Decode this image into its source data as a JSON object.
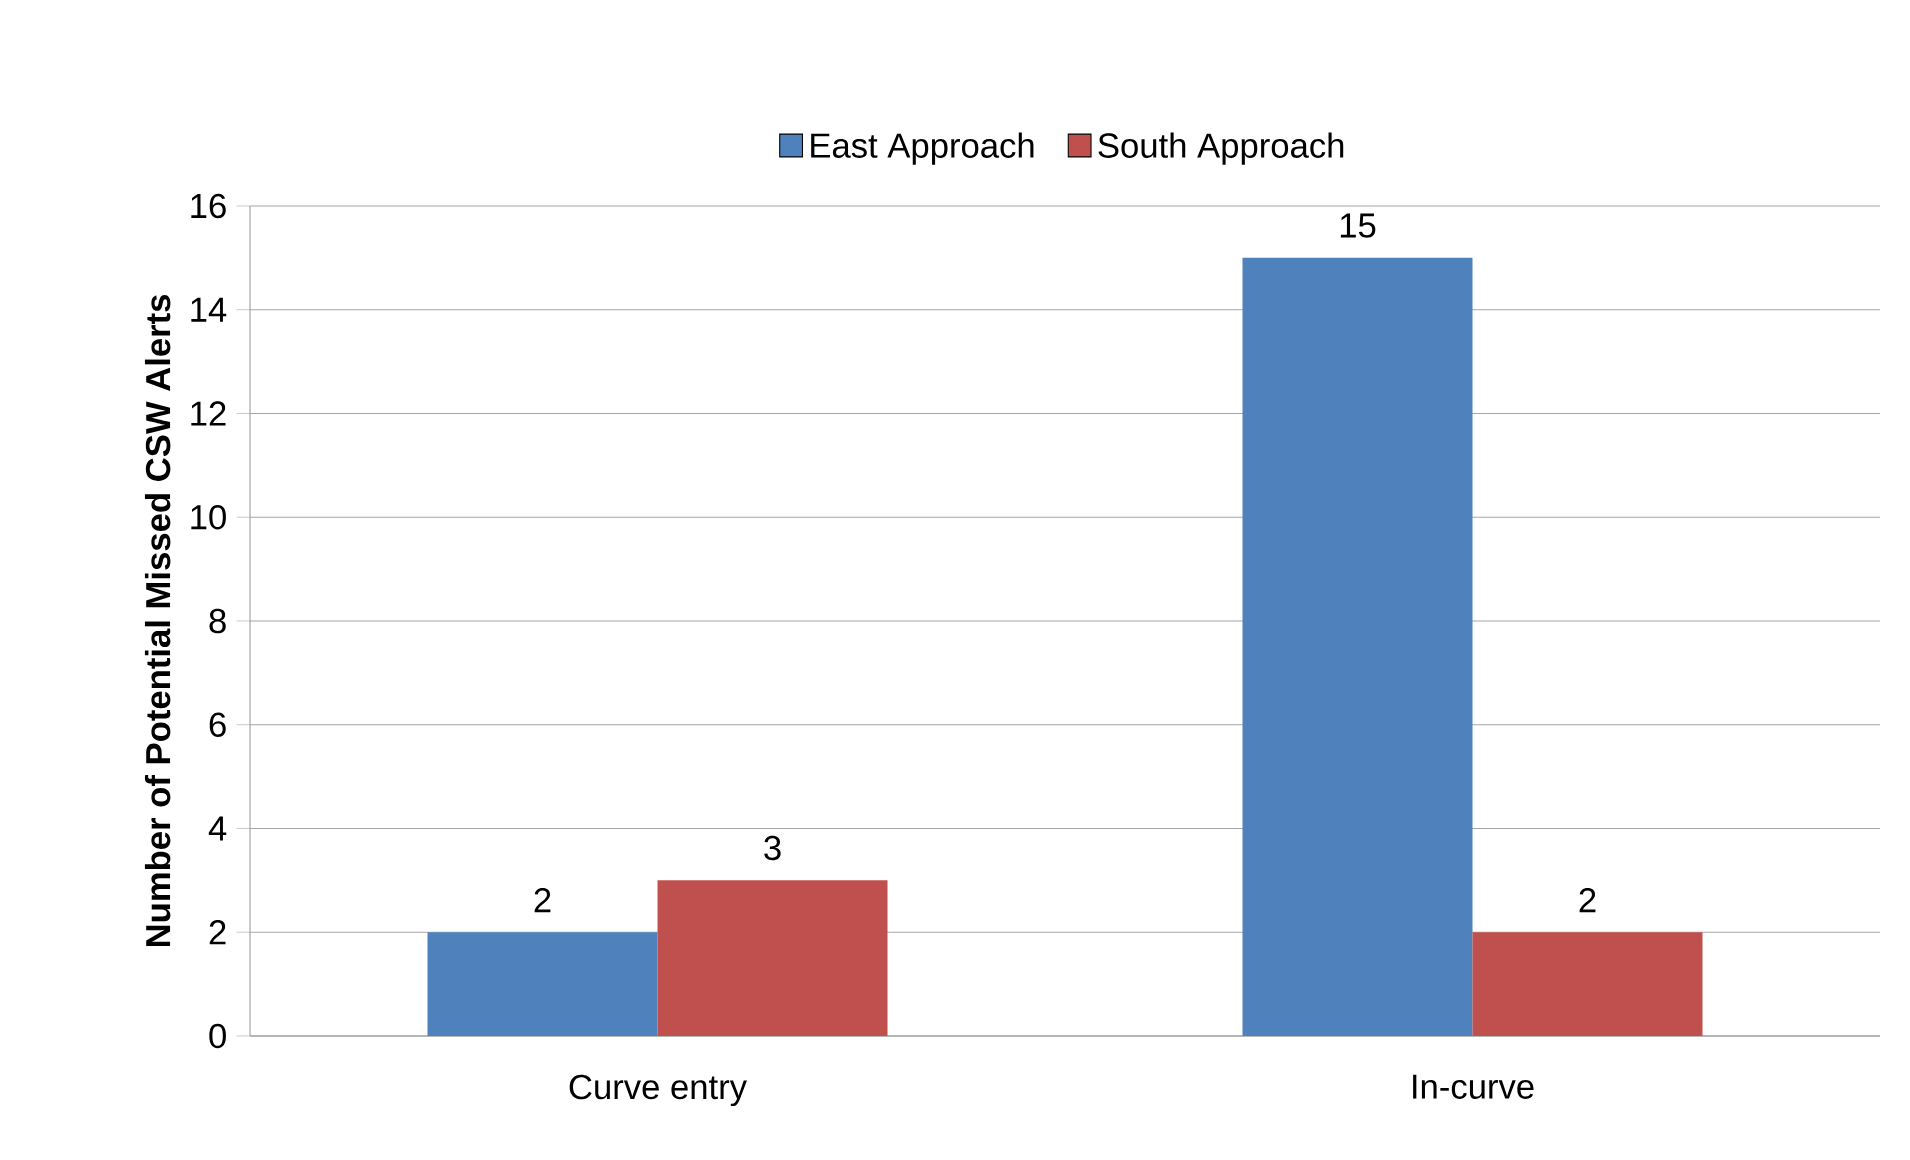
{
  "chart_data": {
    "type": "bar",
    "ylabel": "Number of Potential Missed CSW Alerts",
    "categories": [
      "Curve entry",
      "In-curve"
    ],
    "series": [
      {
        "name": "East Approach",
        "color": "#4f81bd",
        "values": [
          2,
          15
        ]
      },
      {
        "name": "South Approach",
        "color": "#c0504d",
        "values": [
          3,
          2
        ]
      }
    ],
    "ylim": [
      0,
      16
    ],
    "yticks": [
      0,
      2,
      4,
      6,
      8,
      10,
      12,
      14,
      16
    ],
    "grid": "y",
    "legend": "top",
    "data_labels": true
  }
}
